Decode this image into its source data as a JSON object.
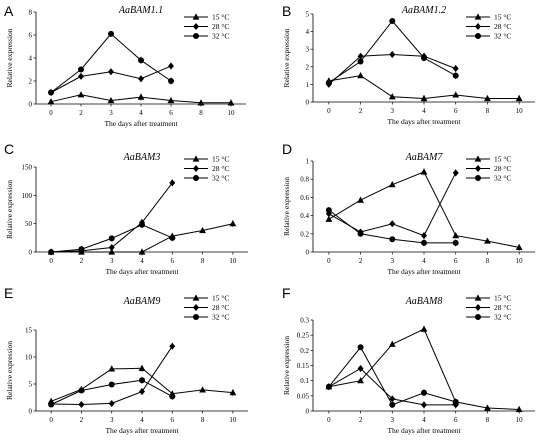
{
  "chart_data": [
    {
      "type": "line",
      "panel": "A",
      "title": "AaBAM1.1",
      "xlabel": "The days after treatment",
      "ylabel": "Relative expression",
      "x_ticks": [
        "0",
        "2",
        "3",
        "4",
        "6",
        "8",
        "10"
      ],
      "ylim": [
        0,
        8
      ],
      "y_ticks": [
        "0",
        "2",
        "4",
        "6",
        "8"
      ],
      "legend_position": "top-right",
      "grid": false,
      "series": [
        {
          "name": "15 °C",
          "marker": "triangle",
          "x": [
            "0",
            "2",
            "3",
            "4",
            "6",
            "8",
            "10"
          ],
          "values": [
            0.2,
            0.8,
            0.3,
            0.6,
            0.3,
            0.1,
            0.1
          ]
        },
        {
          "name": "28 °C",
          "marker": "diamond",
          "x": [
            "0",
            "2",
            "3",
            "4",
            "6"
          ],
          "values": [
            1.0,
            2.4,
            2.8,
            2.2,
            3.3
          ]
        },
        {
          "name": "32 °C",
          "marker": "circle",
          "x": [
            "0",
            "2",
            "3",
            "4",
            "6"
          ],
          "values": [
            1.0,
            3.0,
            6.1,
            3.8,
            2.0
          ]
        }
      ]
    },
    {
      "type": "line",
      "panel": "B",
      "title": "AaBAM1.2",
      "xlabel": "The days after treatment",
      "ylabel": "Relative expression",
      "x_ticks": [
        "0",
        "2",
        "3",
        "4",
        "6",
        "8",
        "10"
      ],
      "ylim": [
        0,
        5
      ],
      "y_ticks": [
        "0",
        "1",
        "2",
        "3",
        "4",
        "5"
      ],
      "legend_position": "top-right",
      "grid": false,
      "series": [
        {
          "name": "15 °C",
          "marker": "triangle",
          "x": [
            "0",
            "2",
            "3",
            "4",
            "6",
            "8",
            "10"
          ],
          "values": [
            1.2,
            1.5,
            0.3,
            0.2,
            0.4,
            0.2,
            0.2
          ]
        },
        {
          "name": "28 °C",
          "marker": "diamond",
          "x": [
            "0",
            "2",
            "3",
            "4",
            "6"
          ],
          "values": [
            1.0,
            2.6,
            2.7,
            2.6,
            1.9
          ]
        },
        {
          "name": "32 °C",
          "marker": "circle",
          "x": [
            "0",
            "2",
            "3",
            "4",
            "6"
          ],
          "values": [
            1.1,
            2.3,
            4.6,
            2.5,
            1.5
          ]
        }
      ]
    },
    {
      "type": "line",
      "panel": "C",
      "title": "AaBAM3",
      "xlabel": "The days after treatment",
      "ylabel": "Relative expression",
      "x_ticks": [
        "0",
        "2",
        "3",
        "4",
        "6",
        "8",
        "10"
      ],
      "ylim": [
        0,
        150
      ],
      "y_ticks": [
        "0",
        "50",
        "100",
        "150"
      ],
      "legend_position": "top-right",
      "grid": false,
      "series": [
        {
          "name": "15 °C",
          "marker": "triangle",
          "x": [
            "0",
            "2",
            "3",
            "4",
            "6",
            "8",
            "10"
          ],
          "values": [
            0,
            0,
            0,
            0,
            28,
            38,
            50
          ]
        },
        {
          "name": "28 °C",
          "marker": "diamond",
          "x": [
            "0",
            "2",
            "3",
            "4",
            "6"
          ],
          "values": [
            0,
            2,
            8,
            52,
            122
          ]
        },
        {
          "name": "32 °C",
          "marker": "circle",
          "x": [
            "0",
            "2",
            "3",
            "4",
            "6"
          ],
          "values": [
            0,
            5,
            24,
            48,
            25
          ]
        }
      ]
    },
    {
      "type": "line",
      "panel": "D",
      "title": "AaBAM7",
      "xlabel": "The days after treatment",
      "ylabel": "Relative expression",
      "x_ticks": [
        "0",
        "2",
        "3",
        "4",
        "6",
        "8",
        "10"
      ],
      "ylim": [
        0,
        1
      ],
      "y_ticks": [
        "0",
        "0.2",
        "0.4",
        "0.6",
        "0.8",
        "1"
      ],
      "legend_position": "top-right",
      "grid": false,
      "series": [
        {
          "name": "15 °C",
          "marker": "triangle",
          "x": [
            "0",
            "2",
            "3",
            "4",
            "6",
            "8",
            "10"
          ],
          "values": [
            0.36,
            0.57,
            0.74,
            0.88,
            0.18,
            0.12,
            0.05
          ]
        },
        {
          "name": "28 °C",
          "marker": "diamond",
          "x": [
            "0",
            "2",
            "3",
            "4",
            "6"
          ],
          "values": [
            0.42,
            0.22,
            0.31,
            0.18,
            0.87
          ]
        },
        {
          "name": "32 °C",
          "marker": "circle",
          "x": [
            "0",
            "2",
            "3",
            "4",
            "6"
          ],
          "values": [
            0.46,
            0.2,
            0.14,
            0.1,
            0.1
          ]
        }
      ]
    },
    {
      "type": "line",
      "panel": "E",
      "title": "AaBAM9",
      "xlabel": "The days after treatment",
      "ylabel": "Relative expression",
      "x_ticks": [
        "0",
        "2",
        "3",
        "4",
        "6",
        "8",
        "10"
      ],
      "ylim": [
        0,
        15
      ],
      "y_ticks": [
        "0",
        "5",
        "10",
        "15"
      ],
      "legend_position": "top-right",
      "grid": false,
      "series": [
        {
          "name": "15 °C",
          "marker": "triangle",
          "x": [
            "0",
            "2",
            "3",
            "4",
            "6",
            "8",
            "10"
          ],
          "values": [
            1.8,
            4.0,
            7.8,
            7.9,
            3.2,
            3.9,
            3.4
          ]
        },
        {
          "name": "28 °C",
          "marker": "diamond",
          "x": [
            "0",
            "2",
            "3",
            "4",
            "6"
          ],
          "values": [
            1.3,
            1.2,
            1.4,
            3.6,
            12.0
          ]
        },
        {
          "name": "32 °C",
          "marker": "circle",
          "x": [
            "0",
            "2",
            "3",
            "4",
            "6"
          ],
          "values": [
            1.2,
            3.8,
            4.9,
            5.7,
            2.7
          ]
        }
      ]
    },
    {
      "type": "line",
      "panel": "F",
      "title": "AaBAM8",
      "xlabel": "The days after treatment",
      "ylabel": "Relative expression",
      "x_ticks": [
        "0",
        "2",
        "3",
        "4",
        "6",
        "8",
        "10"
      ],
      "ylim": [
        0,
        0.3
      ],
      "y_ticks": [
        "0",
        "0.05",
        "0.1",
        "0.15",
        "0.2",
        "0.25",
        "0.3"
      ],
      "legend_position": "top-right",
      "grid": false,
      "series": [
        {
          "name": "15 °C",
          "marker": "triangle",
          "x": [
            "0",
            "2",
            "3",
            "4",
            "6",
            "8",
            "10"
          ],
          "values": [
            0.08,
            0.1,
            0.22,
            0.27,
            0.03,
            0.01,
            0.005
          ]
        },
        {
          "name": "28 °C",
          "marker": "diamond",
          "x": [
            "0",
            "2",
            "3",
            "4",
            "6"
          ],
          "values": [
            0.08,
            0.14,
            0.04,
            0.02,
            0.02
          ]
        },
        {
          "name": "32 °C",
          "marker": "circle",
          "x": [
            "0",
            "2",
            "3",
            "4",
            "6"
          ],
          "values": [
            0.08,
            0.21,
            0.02,
            0.06,
            0.03
          ]
        }
      ]
    }
  ]
}
